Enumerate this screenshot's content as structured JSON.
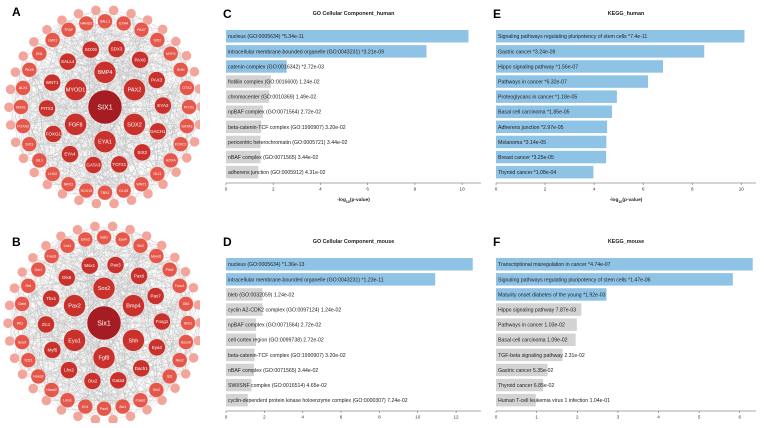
{
  "panels": {
    "A": {
      "letter": "A",
      "center": "SIX1",
      "inner": [
        "BMP4",
        "PAX2",
        "SOX2",
        "EYA1",
        "FGF8",
        "MYOD1",
        "SDX3",
        "PAX6",
        "PAX3",
        "EYA2",
        "DACH1",
        "SIX2",
        "TCF21",
        "GATA3",
        "EYA4",
        "FOXG1",
        "PITX2",
        "WNT1",
        "SALL4",
        "SOX9"
      ],
      "outer": [
        "SALL1",
        "EYA4",
        "PAX7",
        "SIX2",
        "MYF5",
        "SHH",
        "OTX2",
        "PITX1",
        "GATA3",
        "FOXC1",
        "HOXA",
        "GLI3",
        "WNT1",
        "DLX5",
        "TBX1",
        "SOX10",
        "NKX2",
        "LHX2",
        "ISL1",
        "SIX3",
        "FOXA2",
        "MSX1",
        "ALX1",
        "PAX9",
        "EN1",
        "LMX1",
        "TFAP",
        "HAND2"
      ]
    },
    "B": {
      "letter": "B",
      "center": "Six1",
      "inner": [
        "Sox2",
        "Bmp4",
        "Shh",
        "Fgf8",
        "Eya1",
        "Pax2",
        "Pax3",
        "Pax6",
        "Pax7",
        "Foxg1",
        "Eya2",
        "Dach1",
        "Gata3",
        "Otx2",
        "Lhx2",
        "Myf5",
        "Zic1",
        "Tbx1",
        "Dlx5",
        "Msx1"
      ],
      "outer": [
        "Sall1",
        "Eya4",
        "Six2",
        "Myod1",
        "Pitx2",
        "Foxc1",
        "Gli3",
        "Wnt1",
        "Sox10",
        "Nkx2",
        "Isl1",
        "Six3",
        "Foxa2",
        "Alx1",
        "Pax9",
        "En1",
        "Lmx1",
        "Hand2",
        "Hoxa2",
        "Tcf21",
        "Sox9",
        "Wt1",
        "Gdnf",
        "Ret",
        "Osr1",
        "Foxd1",
        "Lhx1",
        "Emx2"
      ]
    }
  },
  "chart_data": [
    {
      "panel": "C",
      "type": "bar",
      "title": "GO Cellular Component_human",
      "xlabel": "-log_{10}(p-value)",
      "xlim": [
        0,
        10.8
      ],
      "ticks": [
        0,
        2,
        4,
        6,
        8,
        10
      ],
      "categories": [
        "nucleus (GO:0005634)  *5.34e-11",
        "intracellular membrane-bounded organelle (GO:0043231)  *3.21e-09",
        "catenin complex (GO:0016342)  *2.72e-03",
        "flotillin complex (GO:0016600)  1.24e-02",
        "chromocenter (GO:0010369)  1.49e-02",
        "npBAF complex (GO:0071564)  2.72e-02",
        "beta-catenin-TCF complex (GO:1990907)  3.20e-02",
        "pericentric heterochromatin (GO:0005721)  3.44e-02",
        "nBAF complex (GO:0071565)  3.44e-02",
        "adherens junction (GO:0005912)  4.31e-02"
      ],
      "values": [
        10.27,
        8.49,
        2.57,
        1.91,
        1.83,
        1.57,
        1.49,
        1.46,
        1.46,
        1.37
      ]
    },
    {
      "panel": "D",
      "type": "bar",
      "title": "GO Cellular Component_mouse",
      "xlabel": "-log_{10}(p-value)",
      "xlim": [
        0,
        13.3
      ],
      "ticks": [
        0,
        2,
        4,
        6,
        8,
        10,
        12
      ],
      "categories": [
        "nucleus (GO:0005634)  *1.36e-13",
        "intracellular membrane-bounded organelle (GO:0043231)  *1.23e-11",
        "bleb (GO:0032059)  1.24e-02",
        "cyclin A2-CDK2 complex (GO:0097124)  1.24e-02",
        "npBAF complex (GO:0071564)  2.72e-02",
        "cell cortex region (GO:0099738)  2.72e-02",
        "beta-catenin-TCF complex (GO:1990907)  3.20e-02",
        "nBAF complex (GO:0071565)  3.44e-02",
        "SWI/SNF complex (GO:0016514)  4.65e-02",
        "cyclin-dependent protein kinase holoenzyme complex (GO:0000307)  7.24e-02"
      ],
      "values": [
        12.87,
        10.91,
        1.91,
        1.91,
        1.57,
        1.57,
        1.49,
        1.46,
        1.33,
        1.14
      ]
    },
    {
      "panel": "E",
      "type": "bar",
      "title": "KEGG_human",
      "xlabel": "-log_{10}(p-value)",
      "xlim": [
        0,
        10.6
      ],
      "ticks": [
        0,
        2,
        4,
        6,
        8,
        10
      ],
      "categories": [
        "Signaling pathways regulating pluripotency of stem cells  *7.4e-11",
        "Gastric cancer  *3.24e-09",
        "Hippo signaling pathway  *1.56e-07",
        "Pathways in cancer  *6.32e-07",
        "Proteoglycans in cancer  *1.18e-05",
        "Basal cell carcinoma  *1.85e-05",
        "Adherens junction  *2.97e-05",
        "Melanoma  *3.14e-05",
        "Breast cancer  *3.25e-05",
        "Thyroid cancer  *1.08e-04"
      ],
      "values": [
        10.13,
        8.49,
        6.81,
        6.2,
        4.93,
        4.73,
        4.53,
        4.5,
        4.49,
        3.97
      ]
    },
    {
      "panel": "F",
      "type": "bar",
      "title": "KEGG_mouse",
      "xlabel": "-log_{10}(p-value)",
      "xlim": [
        0,
        6.4
      ],
      "ticks": [
        0,
        1,
        2,
        3,
        4,
        5,
        6
      ],
      "categories": [
        "Transcriptional misregulation in cancer  *4.74e-07",
        "Signaling pathways regulating pluripotency of stem cells  *1.47e-06",
        "Maturity onset diabetes of the young  *1.92e-03",
        "Hippo signaling pathway  7.87e-03",
        "Pathways in cancer  1.03e-02",
        "Basal cell carcinoma  1.09e-02",
        "TGF-beta signaling pathway  2.31e-02",
        "Gastric cancer  5.35e-02",
        "Thyroid cancer  6.85e-02",
        "Human T-cell leukemia virus 1 infection  1.04e-01"
      ],
      "values": [
        6.32,
        5.83,
        2.72,
        2.1,
        1.99,
        1.96,
        1.64,
        1.27,
        1.16,
        0.98
      ]
    }
  ],
  "colors": {
    "bar_significant": "#8fc3e6",
    "bar_other": "#d3d3d3",
    "node_center": "#a51d22",
    "node_mid": "#c9322c",
    "node_outer": "#e4574a",
    "node_faint": "#f2a59b",
    "edge": "#bfbfbf"
  }
}
